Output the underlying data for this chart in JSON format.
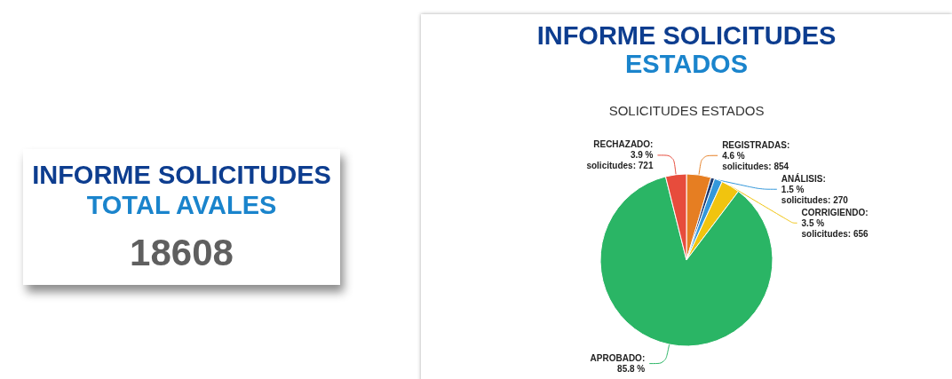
{
  "chart_data": [
    {
      "type": "other",
      "title": "INFORME SOLICITUDES",
      "subtitle": "TOTAL AVALES",
      "annotations": [
        "18608"
      ]
    },
    {
      "type": "pie",
      "title": "INFORME SOLICITUDES",
      "subtitle": "ESTADOS",
      "annotations": [
        "SOLICITUDES ESTADOS"
      ],
      "categories": [
        "REGISTRADAS",
        null,
        "ANÁLISIS",
        "CORRIGIENDO",
        "APROBADO",
        "RECHAZADO"
      ],
      "values": [
        4.6,
        0.7,
        1.5,
        3.5,
        85.8,
        3.9
      ],
      "value_labels": [
        ":\n4.6 %\nsolicitudes: 854",
        null,
        ":\n1.5 %\nsolicitudes: 270",
        ":\n3.5 %\nsolicitudes: 656",
        ":\n85.8 %",
        ":\n3.9 %\nsolicitudes: 721"
      ],
      "colors": [
        "#e67e22",
        "#1f3a6e",
        "#3498db",
        "#f1c40f",
        "#2ab565",
        "#e74c3c"
      ]
    }
  ]
}
